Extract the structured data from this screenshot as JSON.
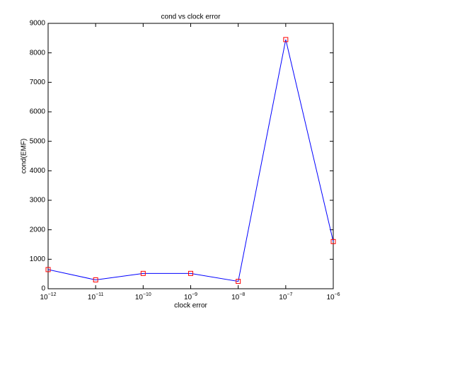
{
  "chart_data": {
    "type": "line",
    "title": "cond vs clock error",
    "x_label": "clock error",
    "y_label": "cond(EMF)",
    "x": [
      1e-12,
      1e-11,
      1e-10,
      1e-09,
      1e-08,
      1e-07,
      1e-06
    ],
    "series": [
      {
        "color": "#0000ff",
        "marker_color": "#ff0000",
        "values": [
          650,
          300,
          520,
          520,
          250,
          8450,
          1600
        ]
      }
    ],
    "xscale": "log",
    "xlim": [
      1e-12,
      1e-06
    ],
    "xticks": [
      {
        "value": 1e-12,
        "label": "10−12"
      },
      {
        "value": 1e-11,
        "label": "10−11"
      },
      {
        "value": 1e-10,
        "label": "10−10"
      },
      {
        "value": 1e-09,
        "label": "10−9"
      },
      {
        "value": 1e-08,
        "label": "10−8"
      },
      {
        "value": 1e-07,
        "label": "10−7"
      },
      {
        "value": 1e-06,
        "label": "10−6"
      }
    ],
    "ylim": [
      0,
      9000
    ],
    "yticks": [
      0,
      1000,
      2000,
      3000,
      4000,
      5000,
      6000,
      7000,
      8000,
      9000
    ],
    "grid": false
  }
}
